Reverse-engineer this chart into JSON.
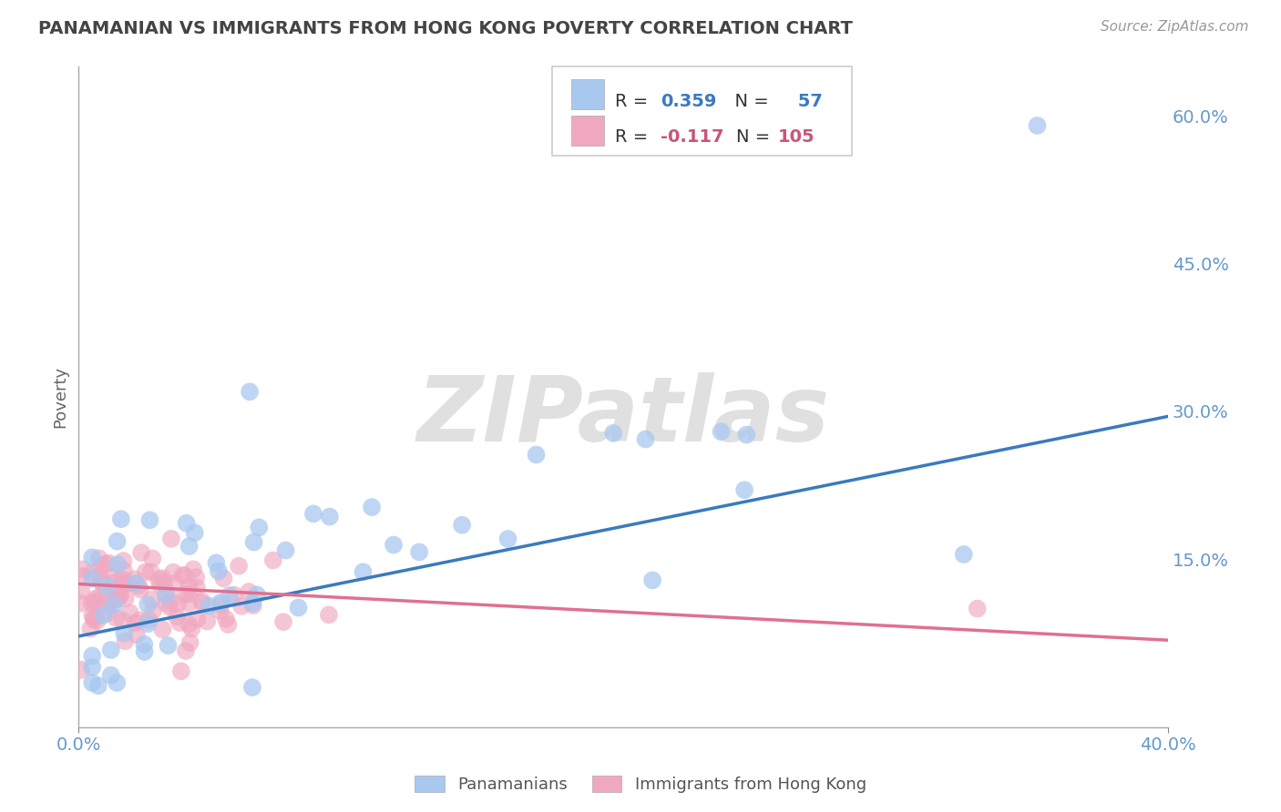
{
  "title": "PANAMANIAN VS IMMIGRANTS FROM HONG KONG POVERTY CORRELATION CHART",
  "source_text": "Source: ZipAtlas.com",
  "ylabel": "Poverty",
  "xlim": [
    0.0,
    0.4
  ],
  "ylim": [
    -0.02,
    0.65
  ],
  "blue_R": 0.359,
  "blue_N": 57,
  "pink_R": -0.117,
  "pink_N": 105,
  "blue_color": "#a8c8f0",
  "pink_color": "#f0a8c0",
  "blue_line_color": "#3a7abf",
  "pink_line_color": "#e07090",
  "watermark_text": "ZIPatlas",
  "legend_label_blue": "Panamanians",
  "legend_label_pink": "Immigrants from Hong Kong",
  "blue_line_start_y": 0.072,
  "blue_line_end_y": 0.295,
  "pink_line_start_y": 0.125,
  "pink_line_end_y": 0.068,
  "background_color": "#ffffff",
  "grid_color": "#cccccc",
  "title_color": "#444444",
  "axis_label_color": "#888888",
  "tick_color": "#6699cc",
  "watermark_color": "#e0e0e0",
  "legend_text_color": "#333333",
  "blue_value_color": "#3a7abf",
  "pink_value_color": "#cc5577"
}
